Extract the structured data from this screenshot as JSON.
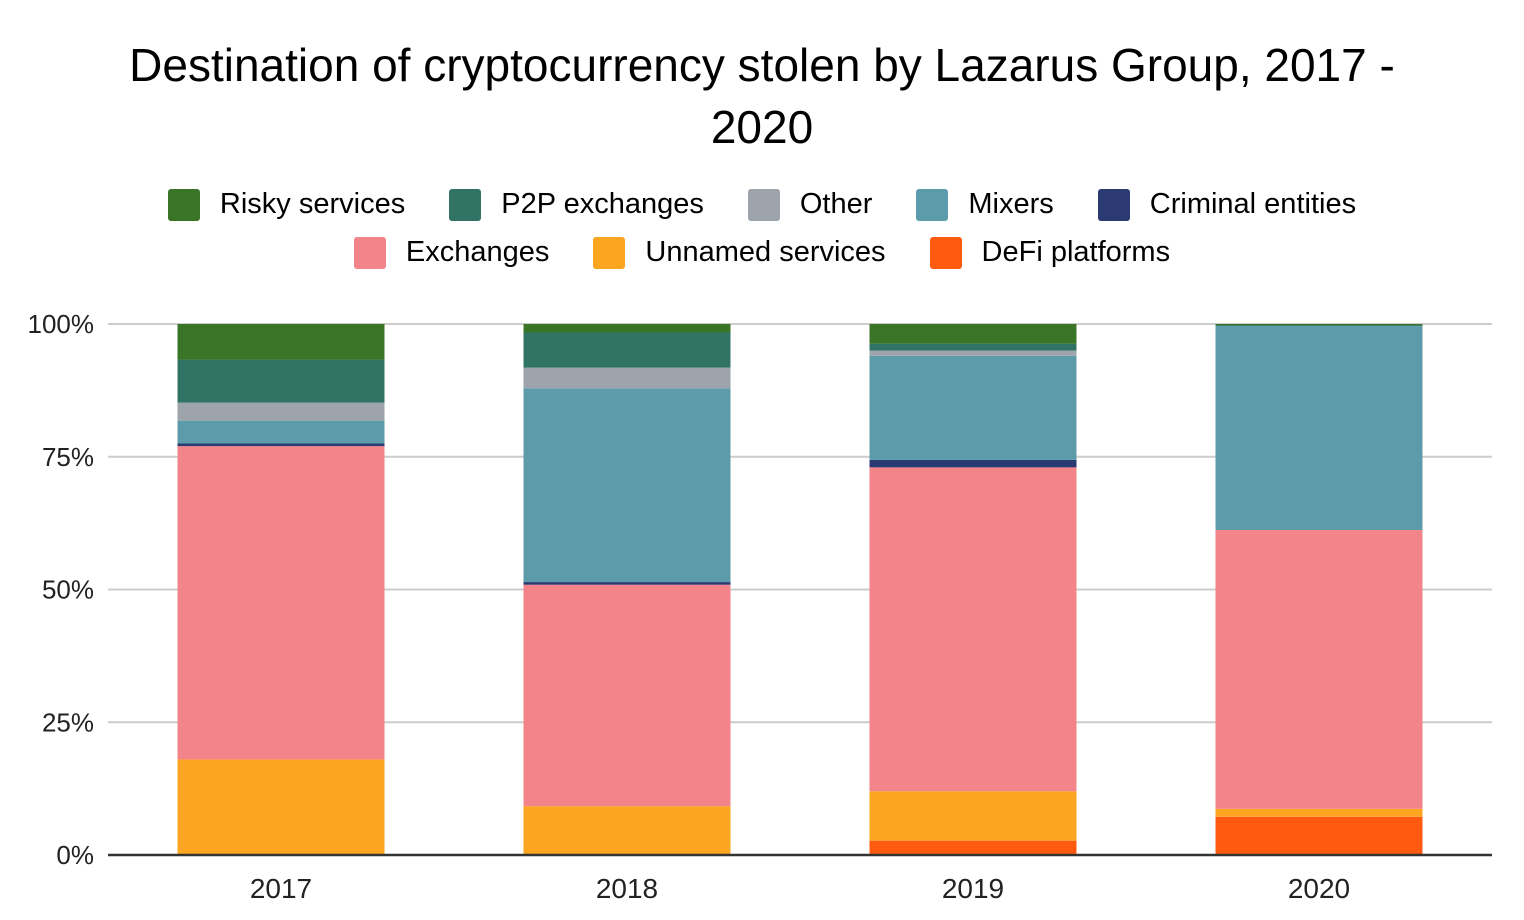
{
  "chart_data": {
    "type": "bar",
    "stacked": true,
    "title": "Destination of cryptocurrency stolen by Lazarus Group, 2017 - 2020",
    "title_lines": [
      "Destination of cryptocurrency stolen by Lazarus Group, 2017 -",
      "2020"
    ],
    "categories": [
      "2017",
      "2018",
      "2019",
      "2020"
    ],
    "y_ticks": [
      "0%",
      "25%",
      "50%",
      "75%",
      "100%"
    ],
    "ylim": [
      0,
      100
    ],
    "grid": true,
    "legend_position": "top",
    "series": [
      {
        "name": "DeFi platforms",
        "color": "#ff5a10",
        "values": [
          0,
          0,
          2.7,
          7.2
        ]
      },
      {
        "name": "Unnamed services",
        "color": "#fba520",
        "values": [
          18,
          9.2,
          9.3,
          1.5
        ]
      },
      {
        "name": "Exchanges",
        "color": "#f2848a",
        "values": [
          59,
          41.7,
          61,
          52.5
        ]
      },
      {
        "name": "Criminal entities",
        "color": "#2c3a73",
        "values": [
          0.5,
          0.5,
          1.4,
          0
        ]
      },
      {
        "name": "Mixers",
        "color": "#5c9ba9",
        "values": [
          4.3,
          36.5,
          19.6,
          38.4
        ]
      },
      {
        "name": "Other",
        "color": "#9ea4ab",
        "values": [
          3.4,
          3.9,
          1.0,
          0
        ]
      },
      {
        "name": "P2P exchanges",
        "color": "#317466",
        "values": [
          8.1,
          6.6,
          1.3,
          0.2
        ]
      },
      {
        "name": "Risky services",
        "color": "#3a7527",
        "values": [
          6.7,
          1.6,
          3.7,
          0.2
        ]
      }
    ]
  },
  "legend": {
    "row1": [
      {
        "name": "Risky services",
        "color": "#3a7527"
      },
      {
        "name": "P2P exchanges",
        "color": "#317466"
      },
      {
        "name": "Other",
        "color": "#9ea4ab"
      },
      {
        "name": "Mixers",
        "color": "#5c9ba9"
      },
      {
        "name": "Criminal entities",
        "color": "#2c3a73"
      }
    ],
    "row2": [
      {
        "name": "Exchanges",
        "color": "#f2848a"
      },
      {
        "name": "Unnamed services",
        "color": "#fba520"
      },
      {
        "name": "DeFi platforms",
        "color": "#ff5a10"
      }
    ]
  }
}
